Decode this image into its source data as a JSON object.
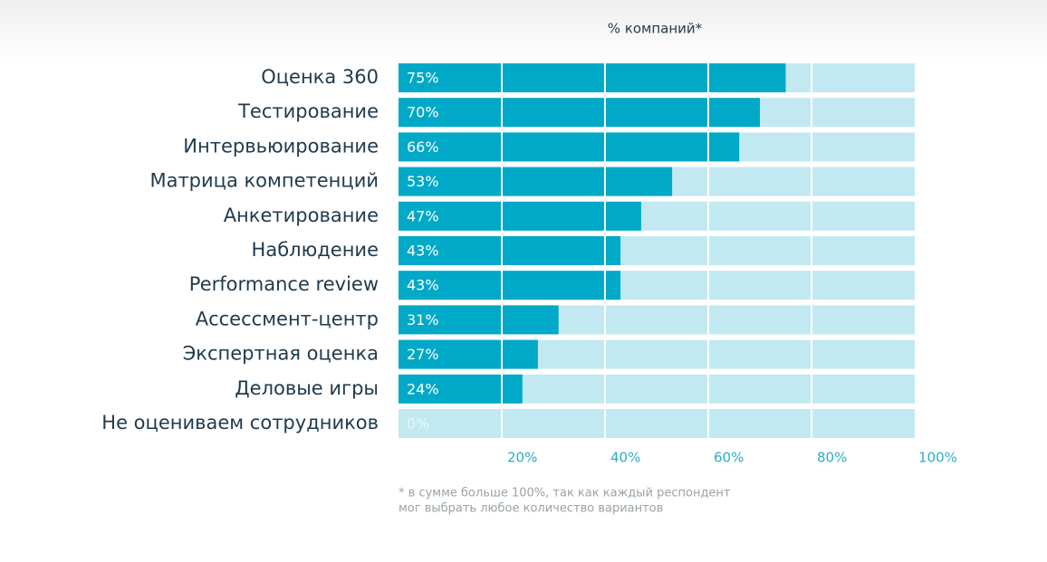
{
  "chart_data": {
    "type": "bar",
    "orientation": "horizontal",
    "axis_label": "% компаний*",
    "categories": [
      "Оценка 360",
      "Тестирование",
      "Интервьюирование",
      "Матрица компетенций",
      "Анкетирование",
      "Наблюдение",
      "Performance review",
      "Ассессмент-центр",
      "Экспертная оценка",
      "Деловые игры",
      "Не оцениваем сотрудников"
    ],
    "values": [
      75,
      70,
      66,
      53,
      47,
      43,
      43,
      31,
      27,
      24,
      0
    ],
    "value_labels": [
      "75%",
      "70%",
      "66%",
      "53%",
      "47%",
      "43%",
      "43%",
      "31%",
      "27%",
      "24%",
      "0%"
    ],
    "color": "#00a9c7",
    "track_color": "#c2e9f1",
    "xlim": [
      0,
      100
    ],
    "xticks": [
      {
        "value": 20,
        "label": "20%"
      },
      {
        "value": 40,
        "label": "40%"
      },
      {
        "value": 60,
        "label": "60%"
      },
      {
        "value": 80,
        "label": "80%"
      },
      {
        "value": 100,
        "label": "100%"
      }
    ],
    "grid": true,
    "footnote": [
      "* в сумме больше 100%, так как каждый респондент",
      "мог выбрать любое количество вариантов"
    ]
  }
}
